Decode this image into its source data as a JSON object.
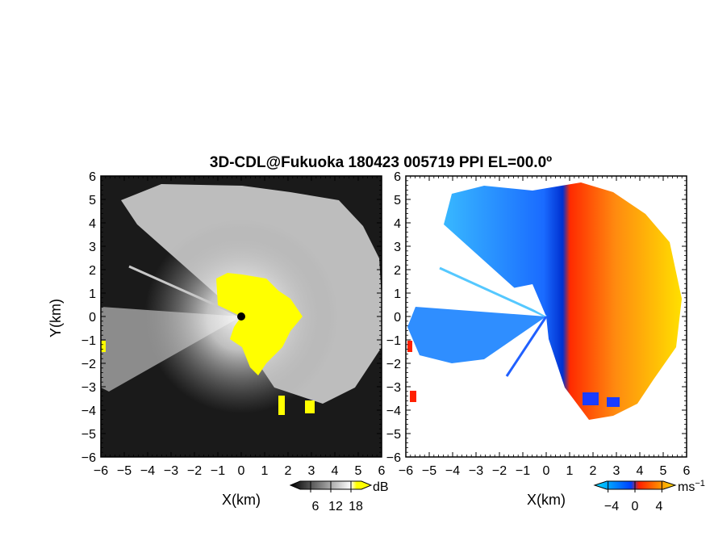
{
  "chart_data": {
    "type": "heatmap",
    "title": "3D-CDL@Fukuoka 180423 005719 PPI EL=00.0º",
    "shared_ylabel": "Y(km)",
    "panels": [
      {
        "name": "reflectivity",
        "xlabel": "X(km)",
        "xlim": [
          -6,
          6
        ],
        "ylim": [
          -6,
          6
        ],
        "ticks": [
          "−6",
          "−5",
          "−4",
          "−3",
          "−2",
          "−1",
          "0",
          "1",
          "2",
          "3",
          "4",
          "5",
          "6"
        ],
        "colorbar": {
          "unit": "dB",
          "tick_labels": [
            "6",
            "12",
            "18"
          ],
          "tick_values": [
            6,
            12,
            18
          ],
          "range": [
            0,
            24
          ],
          "colors": [
            "#000000",
            "#ffffff",
            "#ffff00"
          ]
        },
        "data_description": "radial fan of intensity with saturated core near the origin"
      },
      {
        "name": "doppler-velocity",
        "xlabel": "X(km)",
        "xlim": [
          -6,
          6
        ],
        "ylim": [
          -6,
          6
        ],
        "ticks": [
          "−6",
          "−5",
          "−4",
          "−3",
          "−2",
          "−1",
          "0",
          "1",
          "2",
          "3",
          "4",
          "5",
          "6"
        ],
        "colorbar": {
          "unit": "ms",
          "unit_exponent": "−1",
          "tick_labels": [
            "−4",
            "0",
            "4"
          ],
          "tick_values": [
            -4,
            0,
            4
          ],
          "range": [
            -6,
            6
          ],
          "colors": [
            "#00e0ff",
            "#0040ff",
            "#ff2000",
            "#ffe000"
          ]
        },
        "data_description": "negative (blue) on the west side, positive (red-yellow) on the east side"
      }
    ]
  }
}
